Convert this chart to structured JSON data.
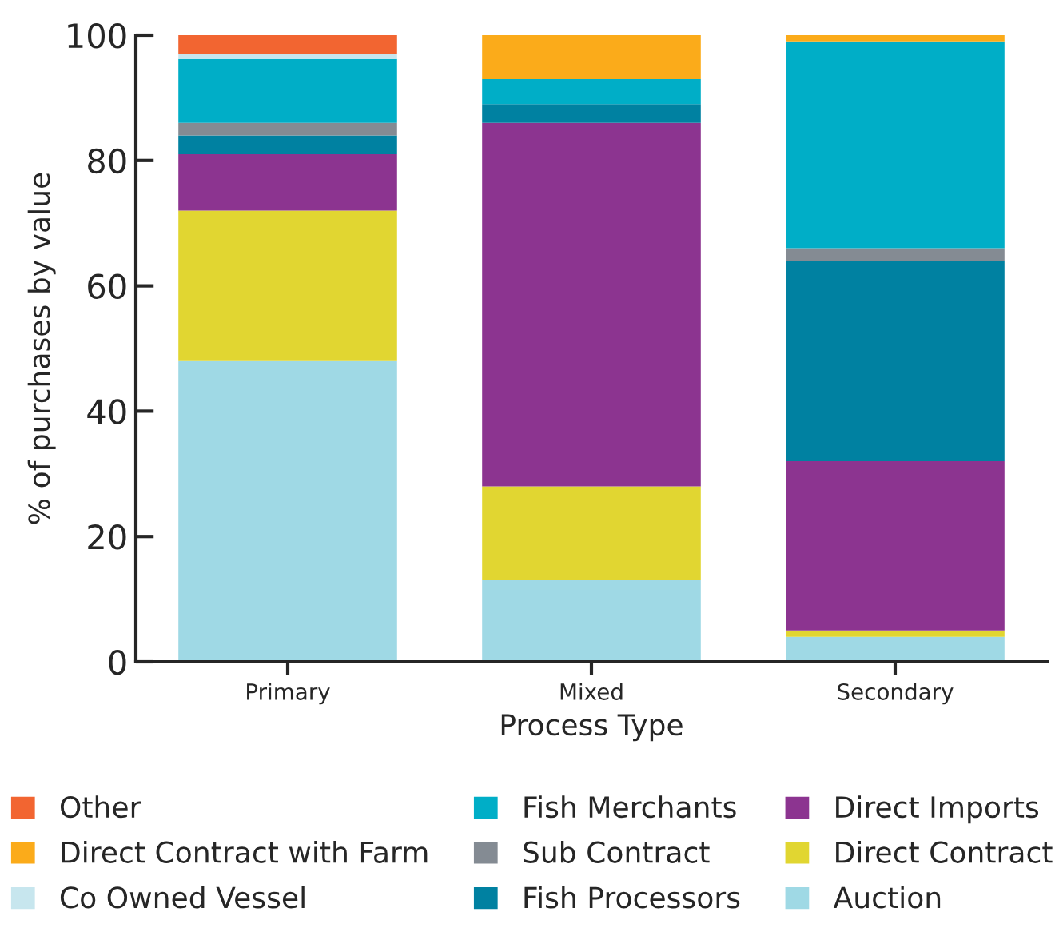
{
  "chart_data": {
    "type": "bar",
    "stacked": true,
    "xlabel": "Process Type",
    "ylabel": "% of purchases by value",
    "categories": [
      "Primary",
      "Mixed",
      "Secondary"
    ],
    "series": [
      {
        "name": "Auction",
        "color": "#9fd9e5",
        "values": [
          48,
          13,
          4
        ]
      },
      {
        "name": "Direct Contract",
        "color": "#e1d631",
        "values": [
          24,
          15,
          1
        ]
      },
      {
        "name": "Direct Imports",
        "color": "#8c3490",
        "values": [
          9,
          58,
          27
        ]
      },
      {
        "name": "Fish Processors",
        "color": "#0081a1",
        "values": [
          3,
          3,
          32
        ]
      },
      {
        "name": "Sub Contract",
        "color": "#848b93",
        "values": [
          2,
          0,
          2
        ]
      },
      {
        "name": "Fish Merchants",
        "color": "#00aec7",
        "values": [
          10.2,
          4,
          33
        ]
      },
      {
        "name": "Co Owned Vessel",
        "color": "#c7e6ee",
        "values": [
          0.8,
          0,
          0
        ]
      },
      {
        "name": "Direct Contract with Farm",
        "color": "#fbab1a",
        "values": [
          0,
          7,
          1
        ]
      },
      {
        "name": "Other",
        "color": "#f26531",
        "values": [
          3,
          0,
          0
        ]
      }
    ],
    "ylim": [
      0,
      100
    ],
    "yticks": [
      0,
      20,
      40,
      60,
      80,
      100
    ],
    "grid": false,
    "legend": "bottom"
  }
}
